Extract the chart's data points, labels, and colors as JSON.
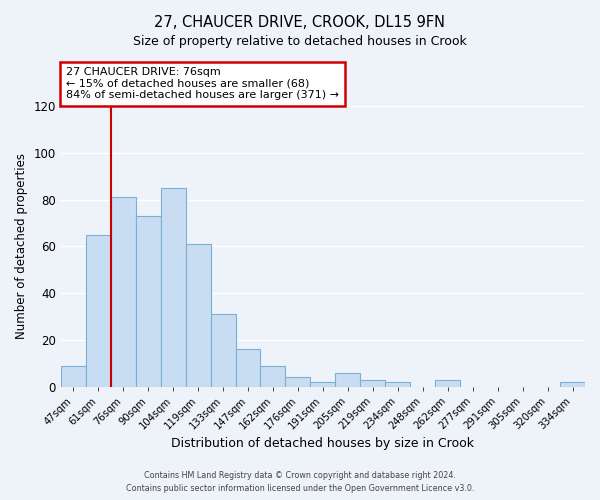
{
  "title": "27, CHAUCER DRIVE, CROOK, DL15 9FN",
  "subtitle": "Size of property relative to detached houses in Crook",
  "xlabel": "Distribution of detached houses by size in Crook",
  "ylabel": "Number of detached properties",
  "bar_color": "#c9ddf2",
  "bar_edge_color": "#7bafd4",
  "background_color": "#eef2f9",
  "plot_bg_color": "#eef2f9",
  "categories": [
    "47sqm",
    "61sqm",
    "76sqm",
    "90sqm",
    "104sqm",
    "119sqm",
    "133sqm",
    "147sqm",
    "162sqm",
    "176sqm",
    "191sqm",
    "205sqm",
    "219sqm",
    "234sqm",
    "248sqm",
    "262sqm",
    "277sqm",
    "291sqm",
    "305sqm",
    "320sqm",
    "334sqm"
  ],
  "values": [
    9,
    65,
    81,
    73,
    85,
    61,
    31,
    16,
    9,
    4,
    2,
    6,
    3,
    2,
    0,
    3,
    0,
    0,
    0,
    0,
    2
  ],
  "ylim": [
    0,
    120
  ],
  "yticks": [
    0,
    20,
    40,
    60,
    80,
    100,
    120
  ],
  "property_line_idx": 2,
  "annotation_title": "27 CHAUCER DRIVE: 76sqm",
  "annotation_line1": "← 15% of detached houses are smaller (68)",
  "annotation_line2": "84% of semi-detached houses are larger (371) →",
  "annotation_box_color": "#ffffff",
  "annotation_box_edge": "#cc0000",
  "vline_color": "#cc0000",
  "grid_color": "#ffffff",
  "footer1": "Contains HM Land Registry data © Crown copyright and database right 2024.",
  "footer2": "Contains public sector information licensed under the Open Government Licence v3.0."
}
